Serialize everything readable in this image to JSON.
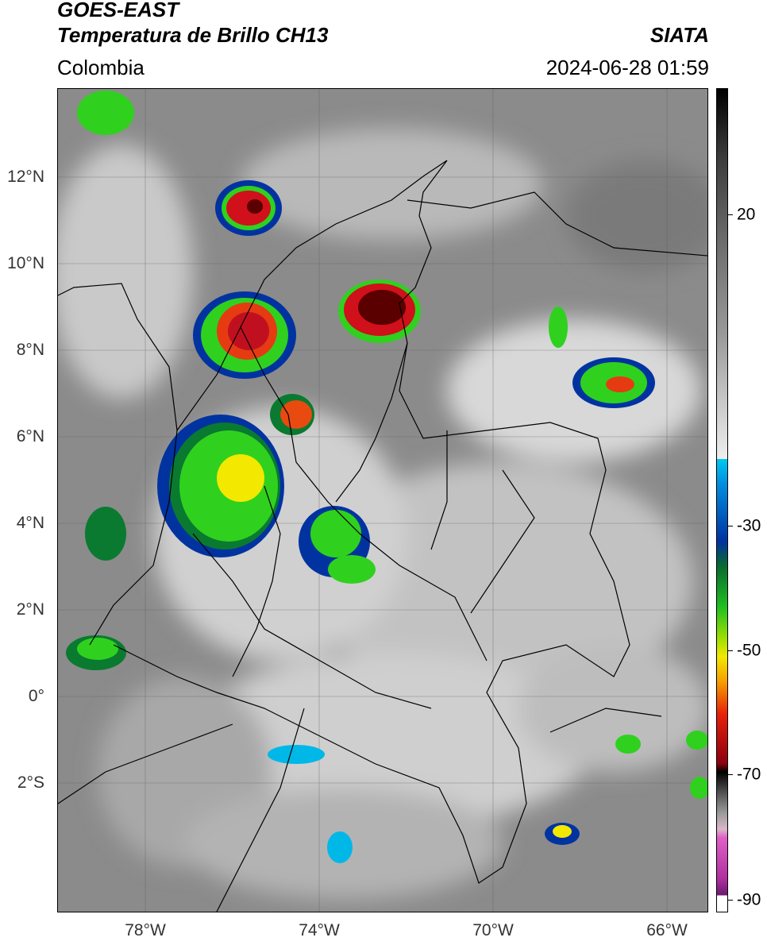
{
  "header": {
    "satellite": "GOES-EAST",
    "product": "Temperatura de Brillo CH13",
    "region": "Colombia",
    "organization": "SIATA",
    "timestamp": "2024-06-28 01:59"
  },
  "map": {
    "lat_labels": [
      "12°N",
      "10°N",
      "8°N",
      "6°N",
      "4°N",
      "2°N",
      "0°",
      "2°S"
    ],
    "lon_labels": [
      "78°W",
      "74°W",
      "70°W",
      "66°W"
    ]
  },
  "colorbar": {
    "labels": [
      "20",
      "-30",
      "-50",
      "-70",
      "-90"
    ],
    "unit_values": [
      20,
      -30,
      -50,
      -70,
      -90
    ]
  },
  "colors": {
    "cold_tops": "#5a0000",
    "deep_red": "#d0101a",
    "yellow": "#f3e800",
    "green": "#2fd11e",
    "dark_green": "#0a7a30",
    "blue": "#0033a0",
    "cyan": "#00b8e8",
    "magenta": "#d23ab8"
  }
}
